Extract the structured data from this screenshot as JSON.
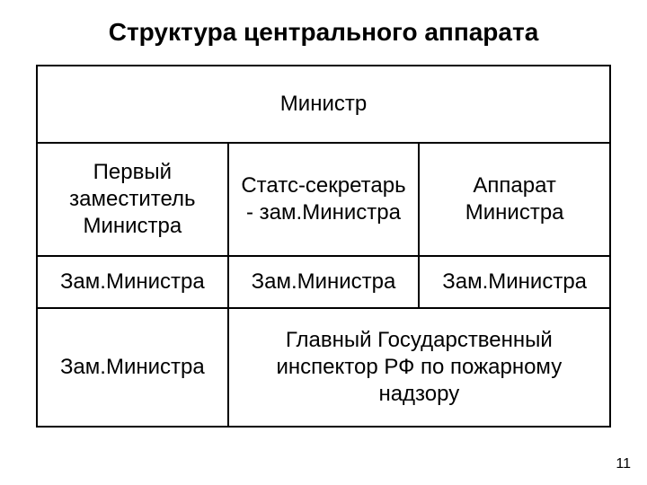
{
  "title": "Структура центрального аппарата",
  "row1": {
    "c1": "Министр"
  },
  "row2": {
    "c1": "Первый заместитель Министра",
    "c2": "Статс-секретарь - зам.Министра",
    "c3": "Аппарат Министра"
  },
  "row3": {
    "c1": "Зам.Министра",
    "c2": "Зам.Министра",
    "c3": "Зам.Министра"
  },
  "row4": {
    "c1": "Зам.Министра",
    "c2": "Главный Государственный инспектор РФ по пожарному надзору"
  },
  "page_number": "11",
  "colors": {
    "background": "#ffffff",
    "text": "#000000",
    "border": "#000000"
  },
  "fontsize": {
    "title": 28,
    "cell": 24,
    "pagenum": 16
  }
}
